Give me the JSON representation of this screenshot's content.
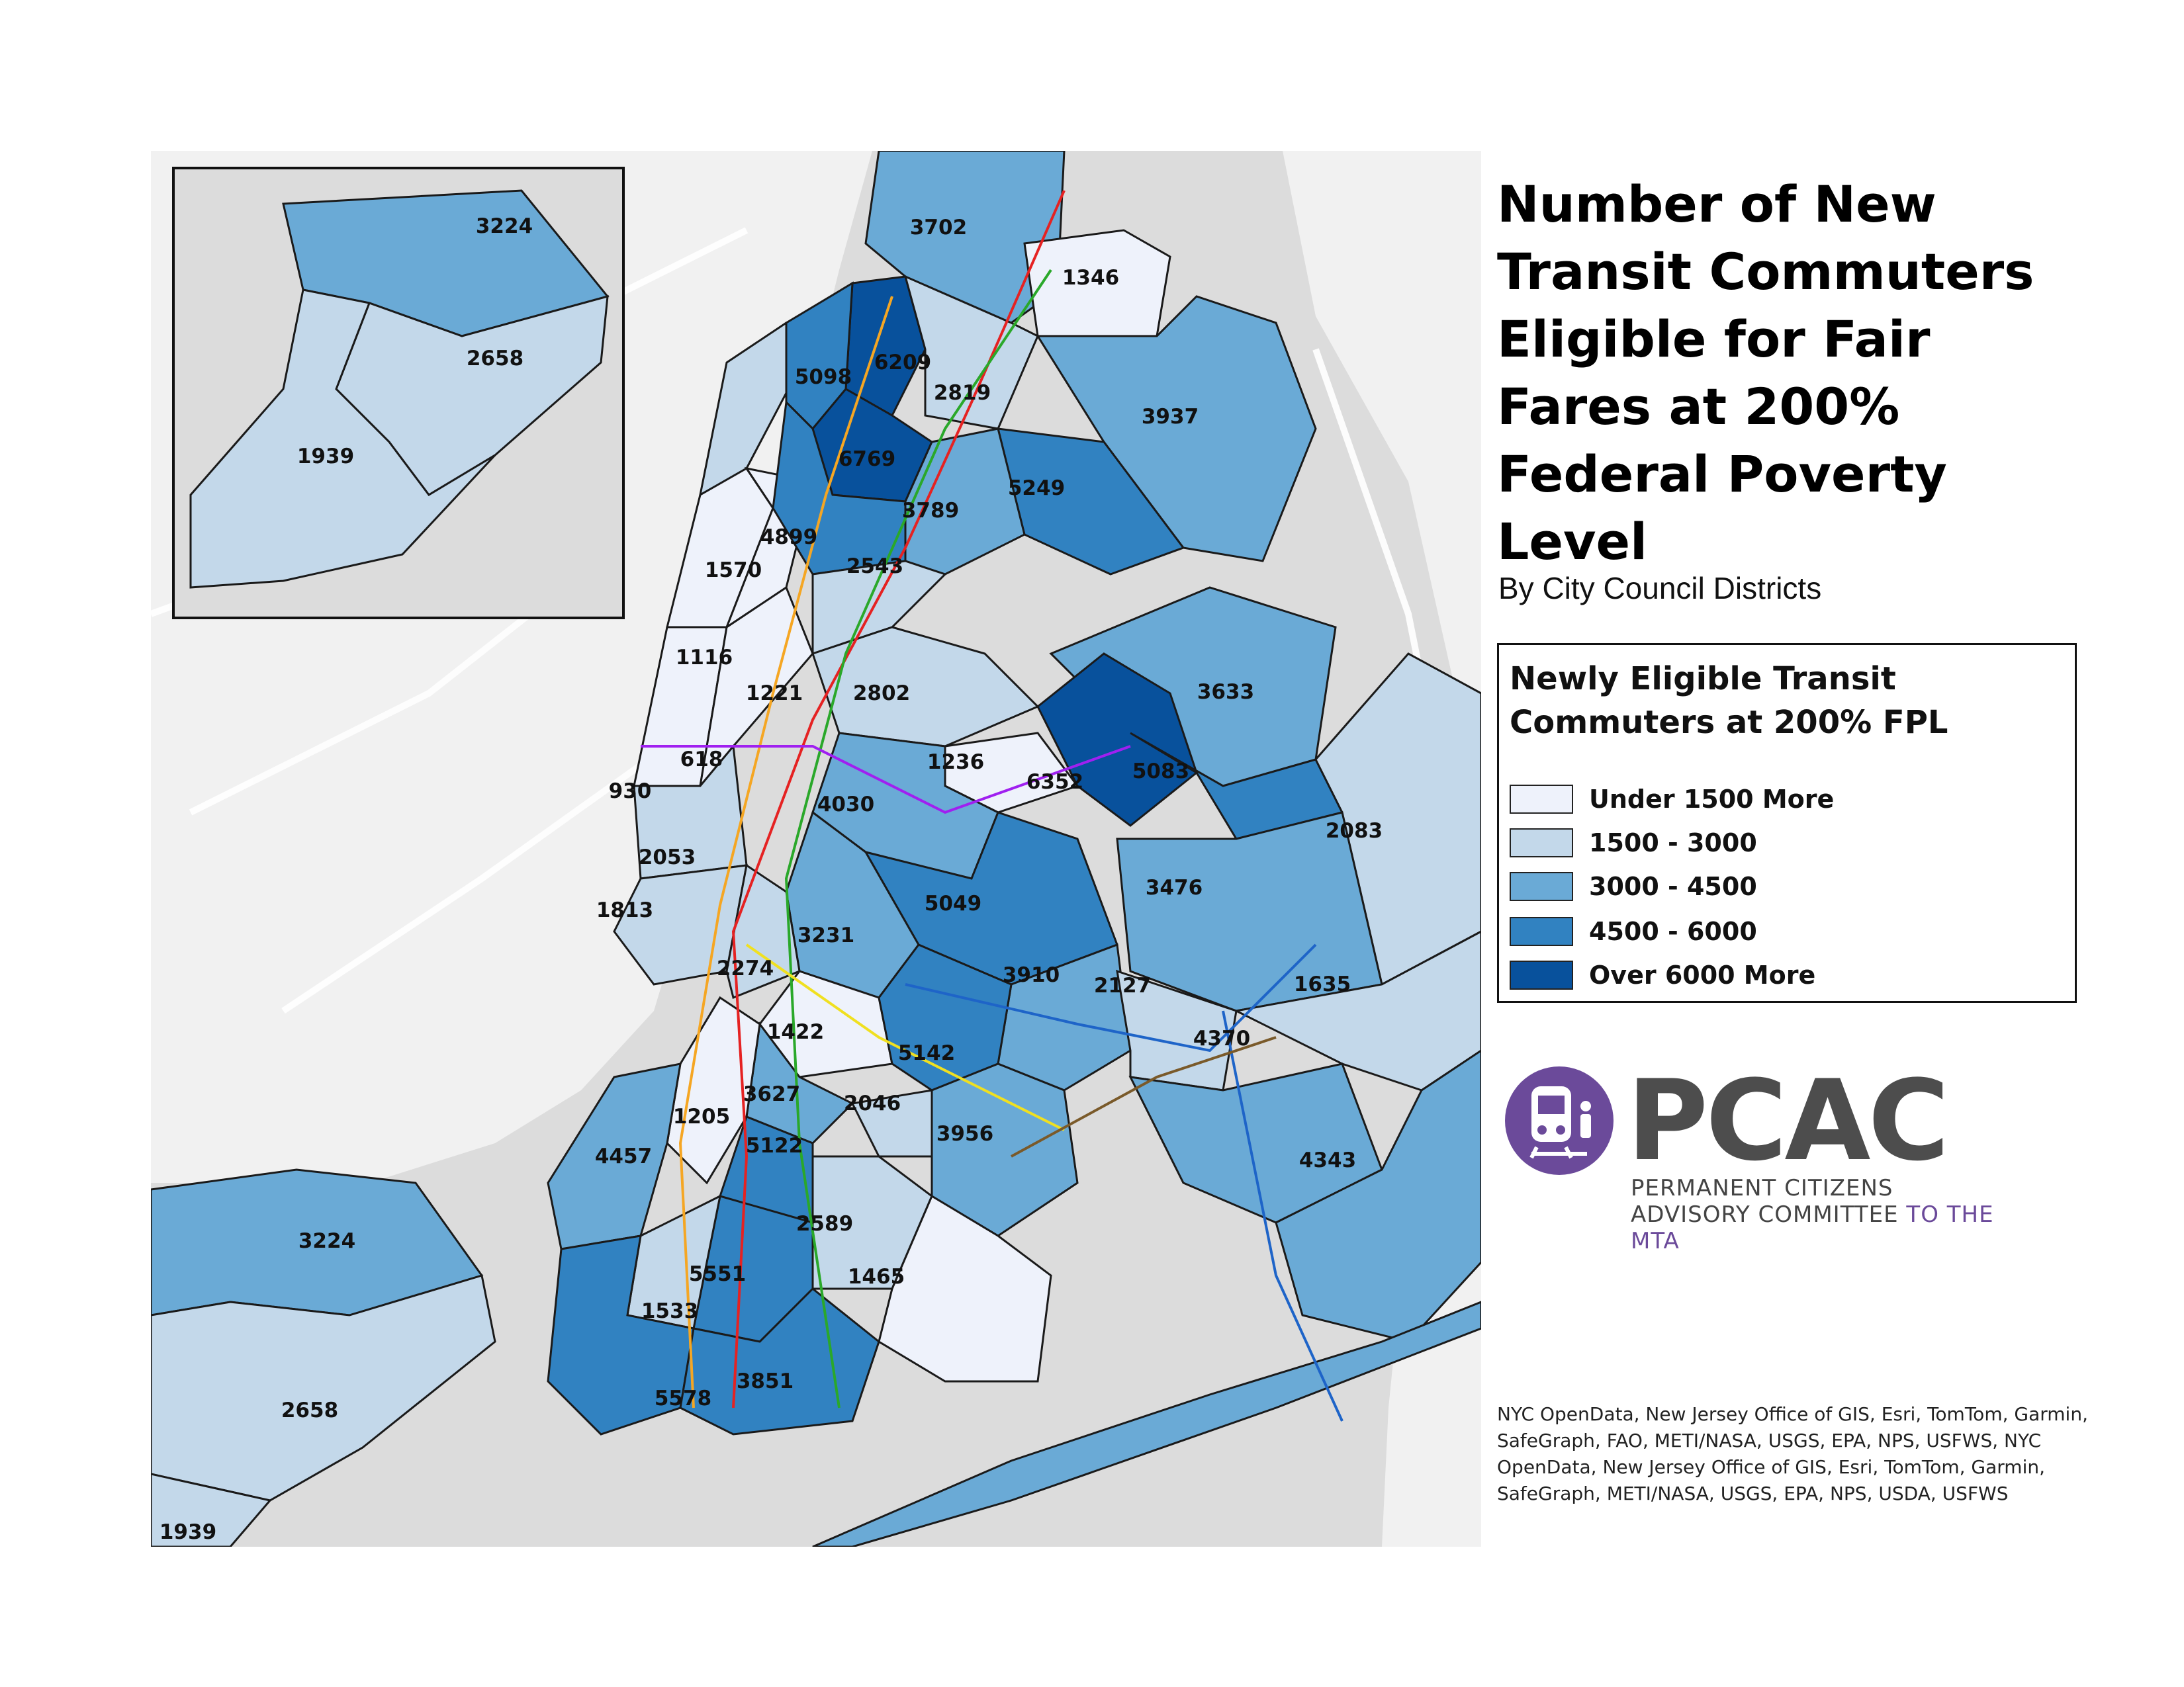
{
  "title": "Number of New Transit Commuters Eligible for Fair Fares at 200% Federal Poverty Level",
  "subtitle": "By City Council Districts",
  "legend": {
    "title": "Newly Eligible Transit Commuters at 200% FPL",
    "classes": [
      {
        "label": "Under 1500 More",
        "color": "#eef2fb"
      },
      {
        "label": "1500 - 3000",
        "color": "#c3d8ea"
      },
      {
        "label": "3000 - 4500",
        "color": "#6aaad6"
      },
      {
        "label": "4500 - 6000",
        "color": "#3182c1"
      },
      {
        "label": "Over 6000 More",
        "color": "#08519c"
      }
    ]
  },
  "colors": {
    "water": "#dcdcdc",
    "land_outside": "#f2f2f2",
    "district_border": "#1a1a1a"
  },
  "districts": [
    "3224",
    "2658",
    "1939",
    "3702",
    "1346",
    "6209",
    "5098",
    "2819",
    "3937",
    "6769",
    "5249",
    "3789",
    "4899",
    "2543",
    "1570",
    "1116",
    "1221",
    "2802",
    "3633",
    "618",
    "1236",
    "6352",
    "5083",
    "930",
    "4030",
    "2083",
    "2053",
    "5049",
    "3476",
    "1813",
    "3231",
    "2274",
    "3910",
    "2127",
    "1635",
    "1422",
    "5142",
    "4370",
    "3627",
    "2046",
    "1205",
    "5122",
    "3956",
    "4343",
    "4457",
    "2589",
    "5551",
    "1465",
    "1533",
    "5578",
    "3851"
  ],
  "inset_districts": [
    "3224",
    "2658",
    "1939"
  ],
  "logo": {
    "name": "PCAC",
    "line1": "PERMANENT CITIZENS",
    "line2a": "ADVISORY COMMITTEE",
    "line2b": "TO THE MTA"
  },
  "credits": "NYC OpenData, New Jersey Office of GIS, Esri, TomTom, Garmin, SafeGraph, FAO, METI/NASA, USGS, EPA, NPS, USFWS, NYC OpenData, New Jersey Office of GIS, Esri, TomTom, Garmin, SafeGraph, METI/NASA, USGS, EPA, NPS, USDA, USFWS"
}
